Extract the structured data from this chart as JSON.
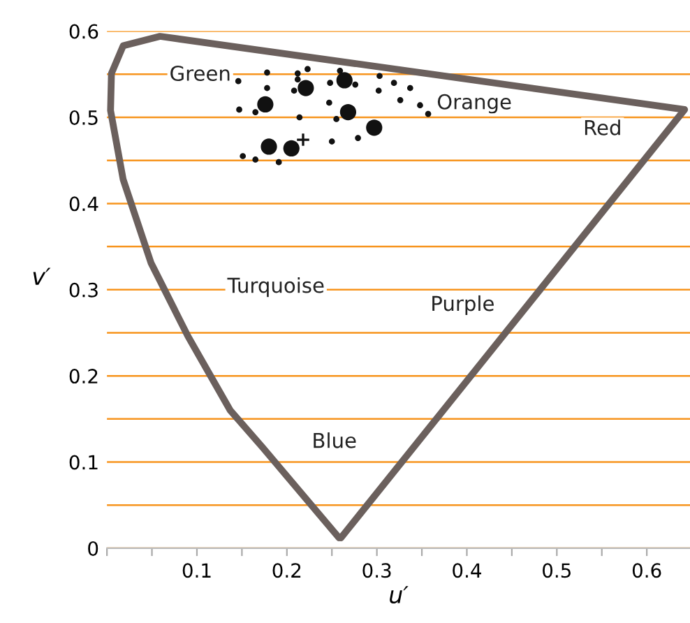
{
  "chart_data": {
    "type": "scatter",
    "xlabel": "u′",
    "ylabel": "v′",
    "xlim": [
      0,
      0.648
    ],
    "ylim": [
      0,
      0.6
    ],
    "xticks": [
      {
        "value": 0,
        "label": null
      },
      {
        "value": 0.05,
        "label": null
      },
      0.1,
      {
        "value": 0.15,
        "label": null
      },
      0.2,
      {
        "value": 0.25,
        "label": null
      },
      0.3,
      {
        "value": 0.35,
        "label": null
      },
      0.4,
      {
        "value": 0.45,
        "label": null
      },
      0.5,
      {
        "value": 0.55,
        "label": null
      },
      0.6
    ],
    "yticks": [
      0,
      {
        "value": 0.05,
        "label": null
      },
      0.1,
      {
        "value": 0.15,
        "label": null
      },
      0.2,
      {
        "value": 0.25,
        "label": null
      },
      0.3,
      {
        "value": 0.35,
        "label": null
      },
      0.4,
      {
        "value": 0.45,
        "label": null
      },
      0.5,
      {
        "value": 0.55,
        "label": null
      },
      0.6
    ],
    "grid": "y",
    "series": [
      {
        "type": "line",
        "color": "#6b605d",
        "x": [
          0.26,
          0.642,
          0.059,
          0.018,
          0.005,
          0.004,
          0.018,
          0.049,
          0.09,
          0.137,
          0.173,
          0.258
        ],
        "values": [
          0.012,
          0.509,
          0.594,
          0.583,
          0.551,
          0.508,
          0.428,
          0.331,
          0.246,
          0.16,
          0.117,
          0.012
        ]
      },
      {
        "type": "bubble",
        "color": "#111111",
        "x": [
          0.146,
          0.178,
          0.212,
          0.223,
          0.259,
          0.178,
          0.212,
          0.208,
          0.248,
          0.276,
          0.303,
          0.319,
          0.337,
          0.302,
          0.326,
          0.348,
          0.357,
          0.247,
          0.255,
          0.214,
          0.147,
          0.165,
          0.25,
          0.279,
          0.151,
          0.165,
          0.191,
          0.221,
          0.264,
          0.176,
          0.268,
          0.297,
          0.18,
          0.205
        ],
        "values": [
          0.542,
          0.552,
          0.551,
          0.556,
          0.554,
          0.534,
          0.544,
          0.531,
          0.54,
          0.538,
          0.548,
          0.54,
          0.534,
          0.531,
          0.52,
          0.514,
          0.504,
          0.517,
          0.498,
          0.5,
          0.509,
          0.506,
          0.472,
          0.476,
          0.455,
          0.451,
          0.448,
          0.534,
          0.543,
          0.515,
          0.506,
          0.488,
          0.466,
          0.464
        ],
        "sizes": [
          0.14,
          0.14,
          0.14,
          0.14,
          0.14,
          0.14,
          0.14,
          0.14,
          0.14,
          0.14,
          0.14,
          0.14,
          0.14,
          0.14,
          0.14,
          0.14,
          0.14,
          0.14,
          0.14,
          0.14,
          0.14,
          0.14,
          0.14,
          0.14,
          0.14,
          0.14,
          0.14,
          1,
          1,
          1,
          1,
          1,
          1,
          1
        ]
      },
      {
        "marker": "cross",
        "color": "#111111",
        "x": [
          0.218
        ],
        "values": [
          0.474
        ]
      }
    ],
    "annotations": [
      "Green",
      "Orange",
      "Red",
      "Turquoise",
      "Purple",
      "Blue"
    ]
  }
}
